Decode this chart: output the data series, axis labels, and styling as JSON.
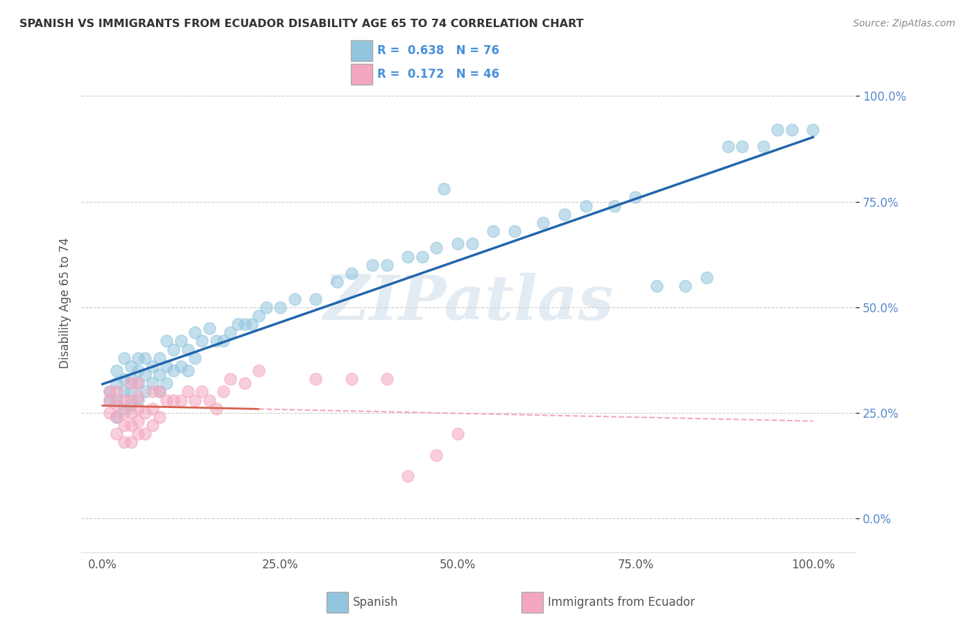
{
  "title": "SPANISH VS IMMIGRANTS FROM ECUADOR DISABILITY AGE 65 TO 74 CORRELATION CHART",
  "source": "Source: ZipAtlas.com",
  "ylabel": "Disability Age 65 to 74",
  "R_spanish": 0.638,
  "N_spanish": 76,
  "R_ecuador": 0.172,
  "N_ecuador": 46,
  "x_ticks": [
    0.0,
    0.25,
    0.5,
    0.75,
    1.0
  ],
  "x_tick_labels": [
    "0.0%",
    "25.0%",
    "50.0%",
    "75.0%",
    "100.0%"
  ],
  "y_ticks": [
    0.0,
    0.25,
    0.5,
    0.75,
    1.0
  ],
  "y_tick_labels": [
    "0.0%",
    "25.0%",
    "50.0%",
    "75.0%",
    "100.0%"
  ],
  "xlim": [
    -0.03,
    1.06
  ],
  "ylim": [
    -0.08,
    1.1
  ],
  "color_spanish": "#92c5de",
  "color_ecuador": "#f4a6be",
  "trendline_color_spanish": "#2166ac",
  "trendline_color_ecuador": "#d6604d",
  "trendline_dashed_color": "#f4a6be",
  "background_color": "#ffffff",
  "watermark": "ZIPatlas",
  "spanish_x": [
    0.01,
    0.01,
    0.02,
    0.02,
    0.02,
    0.02,
    0.03,
    0.03,
    0.03,
    0.03,
    0.04,
    0.04,
    0.04,
    0.04,
    0.05,
    0.05,
    0.05,
    0.05,
    0.06,
    0.06,
    0.06,
    0.07,
    0.07,
    0.08,
    0.08,
    0.08,
    0.09,
    0.09,
    0.09,
    0.1,
    0.1,
    0.11,
    0.11,
    0.12,
    0.12,
    0.13,
    0.13,
    0.14,
    0.15,
    0.16,
    0.17,
    0.18,
    0.19,
    0.2,
    0.21,
    0.22,
    0.23,
    0.25,
    0.27,
    0.3,
    0.33,
    0.35,
    0.38,
    0.4,
    0.43,
    0.45,
    0.47,
    0.48,
    0.5,
    0.52,
    0.55,
    0.58,
    0.62,
    0.65,
    0.68,
    0.72,
    0.75,
    0.78,
    0.82,
    0.85,
    0.88,
    0.9,
    0.93,
    0.95,
    0.97,
    1.0
  ],
  "spanish_y": [
    0.28,
    0.3,
    0.24,
    0.28,
    0.32,
    0.35,
    0.26,
    0.3,
    0.33,
    0.38,
    0.27,
    0.3,
    0.33,
    0.36,
    0.28,
    0.32,
    0.35,
    0.38,
    0.3,
    0.34,
    0.38,
    0.32,
    0.36,
    0.3,
    0.34,
    0.38,
    0.32,
    0.36,
    0.42,
    0.35,
    0.4,
    0.36,
    0.42,
    0.35,
    0.4,
    0.38,
    0.44,
    0.42,
    0.45,
    0.42,
    0.42,
    0.44,
    0.46,
    0.46,
    0.46,
    0.48,
    0.5,
    0.5,
    0.52,
    0.52,
    0.56,
    0.58,
    0.6,
    0.6,
    0.62,
    0.62,
    0.64,
    0.78,
    0.65,
    0.65,
    0.68,
    0.68,
    0.7,
    0.72,
    0.74,
    0.74,
    0.76,
    0.55,
    0.55,
    0.57,
    0.88,
    0.88,
    0.88,
    0.92,
    0.92,
    0.92
  ],
  "ecuador_x": [
    0.01,
    0.01,
    0.01,
    0.02,
    0.02,
    0.02,
    0.02,
    0.03,
    0.03,
    0.03,
    0.03,
    0.04,
    0.04,
    0.04,
    0.04,
    0.04,
    0.05,
    0.05,
    0.05,
    0.05,
    0.05,
    0.06,
    0.06,
    0.07,
    0.07,
    0.07,
    0.08,
    0.08,
    0.09,
    0.1,
    0.11,
    0.12,
    0.13,
    0.14,
    0.15,
    0.16,
    0.17,
    0.18,
    0.2,
    0.22,
    0.3,
    0.35,
    0.4,
    0.43,
    0.47,
    0.5
  ],
  "ecuador_y": [
    0.25,
    0.28,
    0.3,
    0.2,
    0.24,
    0.27,
    0.3,
    0.18,
    0.22,
    0.25,
    0.28,
    0.18,
    0.22,
    0.25,
    0.28,
    0.32,
    0.2,
    0.23,
    0.26,
    0.29,
    0.32,
    0.2,
    0.25,
    0.22,
    0.26,
    0.3,
    0.24,
    0.3,
    0.28,
    0.28,
    0.28,
    0.3,
    0.28,
    0.3,
    0.28,
    0.26,
    0.3,
    0.33,
    0.32,
    0.35,
    0.33,
    0.33,
    0.33,
    0.1,
    0.15,
    0.2
  ]
}
